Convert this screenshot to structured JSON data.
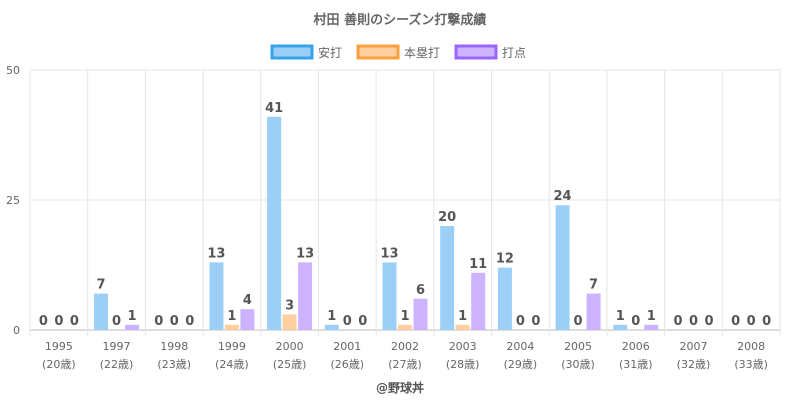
{
  "chart_data": {
    "type": "bar",
    "title": "村田 善則のシーズン打撃成績",
    "categories": [
      "1995",
      "1997",
      "1998",
      "1999",
      "2000",
      "2001",
      "2002",
      "2003",
      "2004",
      "2005",
      "2006",
      "2007",
      "2008"
    ],
    "sublabels": [
      "(20歳)",
      "(22歳)",
      "(23歳)",
      "(24歳)",
      "(25歳)",
      "(26歳)",
      "(27歳)",
      "(28歳)",
      "(29歳)",
      "(30歳)",
      "(31歳)",
      "(32歳)",
      "(33歳)"
    ],
    "series": [
      {
        "name": "安打",
        "fill": "#9ccff5",
        "stroke": "#36a2eb",
        "values": [
          0,
          7,
          0,
          13,
          41,
          1,
          13,
          20,
          12,
          24,
          1,
          0,
          0
        ]
      },
      {
        "name": "本塁打",
        "fill": "#ffcf9f",
        "stroke": "#ff9f40",
        "values": [
          0,
          0,
          0,
          1,
          3,
          0,
          1,
          1,
          0,
          0,
          0,
          0,
          0
        ]
      },
      {
        "name": "打点",
        "fill": "#ccb2ff",
        "stroke": "#9966ff",
        "values": [
          0,
          1,
          0,
          4,
          13,
          0,
          6,
          11,
          0,
          7,
          1,
          0,
          0
        ]
      }
    ],
    "yticks": [
      0,
      25,
      50
    ],
    "ylim": [
      0,
      50
    ],
    "grid": true,
    "legend": "top",
    "footer": "@野球丼"
  }
}
